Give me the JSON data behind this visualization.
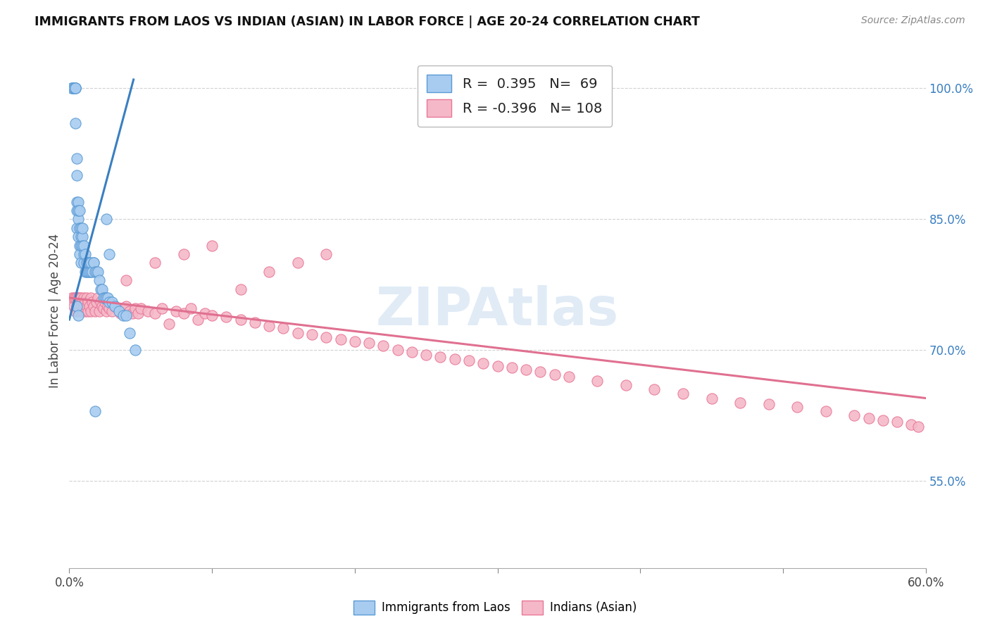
{
  "title": "IMMIGRANTS FROM LAOS VS INDIAN (ASIAN) IN LABOR FORCE | AGE 20-24 CORRELATION CHART",
  "source": "Source: ZipAtlas.com",
  "ylabel": "In Labor Force | Age 20-24",
  "watermark": "ZIPAtlas",
  "laos_R": 0.395,
  "laos_N": 69,
  "indian_R": -0.396,
  "indian_N": 108,
  "x_min": 0.0,
  "x_max": 0.6,
  "y_min": 0.45,
  "y_max": 1.04,
  "x_ticks": [
    0.0,
    0.1,
    0.2,
    0.3,
    0.4,
    0.5,
    0.6
  ],
  "x_tick_labels_bottom": [
    "0.0%",
    "",
    "",
    "",
    "",
    "",
    "60.0%"
  ],
  "y_ticks": [
    0.55,
    0.7,
    0.85,
    1.0
  ],
  "y_tick_labels": [
    "55.0%",
    "70.0%",
    "85.0%",
    "100.0%"
  ],
  "laos_color": "#A8CCF0",
  "indian_color": "#F5B8C8",
  "laos_edge_color": "#5B9BD5",
  "indian_edge_color": "#E87898",
  "laos_line_color": "#3A7FC1",
  "indian_line_color": "#E07090",
  "grid_color": "#CCCCCC",
  "laos_x": [
    0.002,
    0.002,
    0.003,
    0.003,
    0.003,
    0.004,
    0.004,
    0.004,
    0.004,
    0.004,
    0.005,
    0.005,
    0.005,
    0.005,
    0.005,
    0.006,
    0.006,
    0.006,
    0.006,
    0.007,
    0.007,
    0.007,
    0.007,
    0.008,
    0.008,
    0.008,
    0.008,
    0.009,
    0.009,
    0.009,
    0.01,
    0.01,
    0.01,
    0.011,
    0.011,
    0.012,
    0.012,
    0.013,
    0.013,
    0.014,
    0.014,
    0.015,
    0.015,
    0.016,
    0.017,
    0.017,
    0.018,
    0.019,
    0.02,
    0.021,
    0.022,
    0.023,
    0.024,
    0.025,
    0.026,
    0.027,
    0.028,
    0.03,
    0.032,
    0.035,
    0.038,
    0.04,
    0.042,
    0.046,
    0.005,
    0.006,
    0.026,
    0.028,
    0.018
  ],
  "laos_y": [
    1.0,
    1.0,
    1.0,
    1.0,
    1.0,
    1.0,
    1.0,
    1.0,
    1.0,
    0.96,
    0.87,
    0.9,
    0.84,
    0.92,
    0.86,
    0.85,
    0.87,
    0.83,
    0.86,
    0.82,
    0.84,
    0.86,
    0.81,
    0.82,
    0.84,
    0.8,
    0.83,
    0.83,
    0.82,
    0.84,
    0.8,
    0.81,
    0.82,
    0.79,
    0.81,
    0.79,
    0.8,
    0.79,
    0.8,
    0.79,
    0.8,
    0.79,
    0.8,
    0.79,
    0.8,
    0.8,
    0.79,
    0.79,
    0.79,
    0.78,
    0.77,
    0.77,
    0.76,
    0.76,
    0.76,
    0.76,
    0.755,
    0.755,
    0.75,
    0.745,
    0.74,
    0.74,
    0.72,
    0.7,
    0.75,
    0.74,
    0.85,
    0.81,
    0.63
  ],
  "indian_x": [
    0.002,
    0.003,
    0.003,
    0.004,
    0.004,
    0.005,
    0.005,
    0.006,
    0.006,
    0.007,
    0.007,
    0.008,
    0.008,
    0.009,
    0.009,
    0.01,
    0.01,
    0.011,
    0.011,
    0.012,
    0.012,
    0.013,
    0.013,
    0.014,
    0.015,
    0.015,
    0.016,
    0.017,
    0.018,
    0.019,
    0.02,
    0.021,
    0.022,
    0.023,
    0.024,
    0.025,
    0.026,
    0.027,
    0.028,
    0.03,
    0.032,
    0.034,
    0.036,
    0.038,
    0.04,
    0.042,
    0.044,
    0.046,
    0.048,
    0.05,
    0.055,
    0.06,
    0.065,
    0.07,
    0.075,
    0.08,
    0.085,
    0.09,
    0.095,
    0.1,
    0.11,
    0.12,
    0.13,
    0.14,
    0.15,
    0.16,
    0.17,
    0.18,
    0.19,
    0.2,
    0.21,
    0.22,
    0.23,
    0.24,
    0.25,
    0.26,
    0.27,
    0.28,
    0.29,
    0.3,
    0.31,
    0.32,
    0.33,
    0.34,
    0.35,
    0.37,
    0.39,
    0.41,
    0.43,
    0.45,
    0.47,
    0.49,
    0.51,
    0.53,
    0.55,
    0.56,
    0.57,
    0.58,
    0.59,
    0.595,
    0.04,
    0.06,
    0.08,
    0.1,
    0.12,
    0.14,
    0.16,
    0.18
  ],
  "indian_y": [
    0.76,
    0.75,
    0.76,
    0.745,
    0.76,
    0.75,
    0.76,
    0.75,
    0.76,
    0.745,
    0.76,
    0.75,
    0.76,
    0.745,
    0.755,
    0.75,
    0.76,
    0.745,
    0.755,
    0.75,
    0.76,
    0.745,
    0.755,
    0.75,
    0.76,
    0.745,
    0.755,
    0.75,
    0.745,
    0.755,
    0.76,
    0.745,
    0.755,
    0.75,
    0.748,
    0.755,
    0.745,
    0.75,
    0.748,
    0.745,
    0.75,
    0.748,
    0.742,
    0.748,
    0.75,
    0.745,
    0.742,
    0.748,
    0.742,
    0.748,
    0.745,
    0.742,
    0.748,
    0.73,
    0.745,
    0.742,
    0.748,
    0.735,
    0.742,
    0.74,
    0.738,
    0.735,
    0.732,
    0.728,
    0.725,
    0.72,
    0.718,
    0.715,
    0.712,
    0.71,
    0.708,
    0.705,
    0.7,
    0.698,
    0.695,
    0.692,
    0.69,
    0.688,
    0.685,
    0.682,
    0.68,
    0.678,
    0.675,
    0.672,
    0.67,
    0.665,
    0.66,
    0.655,
    0.65,
    0.645,
    0.64,
    0.638,
    0.635,
    0.63,
    0.625,
    0.622,
    0.62,
    0.618,
    0.615,
    0.612,
    0.78,
    0.8,
    0.81,
    0.82,
    0.77,
    0.79,
    0.8,
    0.81
  ],
  "laos_line_x": [
    0.0,
    0.045
  ],
  "laos_line_y": [
    0.735,
    1.01
  ],
  "indian_line_x": [
    0.0,
    0.6
  ],
  "indian_line_y": [
    0.76,
    0.645
  ]
}
